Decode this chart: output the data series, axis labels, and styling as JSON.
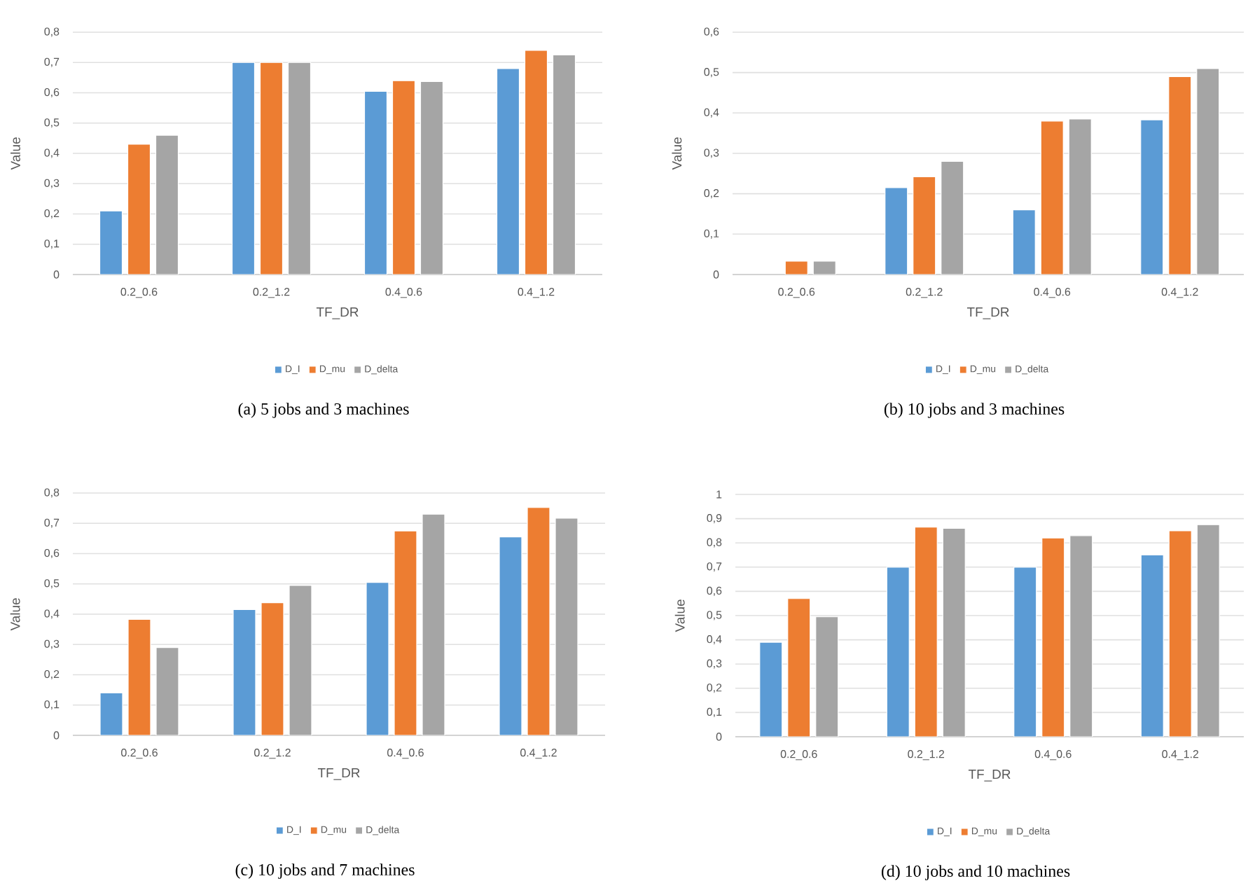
{
  "chart_data": [
    {
      "type": "bar",
      "categories": [
        "0.2_0.6",
        "0.2_1.2",
        "0.4_0.6",
        "0.4_1.2"
      ],
      "xlabel": "TF_DR",
      "ylabel": "Value",
      "ylim": [
        0,
        0.8
      ],
      "yticks": [
        0,
        {
          "value": 0.1,
          "label": "0,1"
        },
        {
          "value": 0.2,
          "label": "0,2"
        },
        {
          "value": 0.3,
          "label": "0,3"
        },
        {
          "value": 0.4,
          "label": "0,4"
        },
        {
          "value": 0.5,
          "label": "0,5"
        },
        {
          "value": 0.6,
          "label": "0,6"
        },
        {
          "value": 0.7,
          "label": "0,7"
        },
        {
          "value": 0.8,
          "label": "0,8"
        }
      ],
      "grid": "y",
      "legend": "bottom",
      "annotations": [
        "(a)  5 jobs and 3 machines"
      ],
      "series": [
        {
          "name": "D_I",
          "color": "#5b9bd5",
          "values": [
            0.21,
            0.7,
            0.605,
            0.68
          ]
        },
        {
          "name": "D_mu",
          "color": "#ed7d31",
          "values": [
            0.43,
            0.7,
            0.64,
            0.74
          ]
        },
        {
          "name": "D_delta",
          "color": "#a5a5a5",
          "values": [
            0.46,
            0.7,
            0.637,
            0.725
          ]
        }
      ]
    },
    {
      "type": "bar",
      "categories": [
        "0.2_0.6",
        "0.2_1.2",
        "0.4_0.6",
        "0.4_1.2"
      ],
      "xlabel": "TF_DR",
      "ylabel": "Value",
      "ylim": [
        0,
        0.6
      ],
      "yticks": [
        0,
        {
          "value": 0.1,
          "label": "0,1"
        },
        {
          "value": 0.2,
          "label": "0,2"
        },
        {
          "value": 0.3,
          "label": "0,3"
        },
        {
          "value": 0.4,
          "label": "0,4"
        },
        {
          "value": 0.5,
          "label": "0,5"
        },
        {
          "value": 0.6,
          "label": "0,6"
        }
      ],
      "grid": "y",
      "legend": "bottom",
      "annotations": [
        "(b)  10 jobs and 3 machines"
      ],
      "series": [
        {
          "name": "D_I",
          "color": "#5b9bd5",
          "values": [
            null,
            0.215,
            0.16,
            0.383
          ]
        },
        {
          "name": "D_mu",
          "color": "#ed7d31",
          "values": [
            0.033,
            0.242,
            0.38,
            0.49
          ]
        },
        {
          "name": "D_delta",
          "color": "#a5a5a5",
          "values": [
            0.033,
            0.28,
            0.385,
            0.51
          ]
        }
      ]
    },
    {
      "type": "bar",
      "categories": [
        "0.2_0.6",
        "0.2_1.2",
        "0.4_0.6",
        "0.4_1.2"
      ],
      "xlabel": "TF_DR",
      "ylabel": "Value",
      "ylim": [
        0,
        0.8
      ],
      "yticks": [
        0,
        {
          "value": 0.1,
          "label": "0,1"
        },
        {
          "value": 0.2,
          "label": "0,2"
        },
        {
          "value": 0.3,
          "label": "0,3"
        },
        {
          "value": 0.4,
          "label": "0,4"
        },
        {
          "value": 0.5,
          "label": "0,5"
        },
        {
          "value": 0.6,
          "label": "0,6"
        },
        {
          "value": 0.7,
          "label": "0,7"
        },
        {
          "value": 0.8,
          "label": "0,8"
        }
      ],
      "grid": "y",
      "legend": "bottom",
      "annotations": [
        "(c)  10 jobs and 7 machines"
      ],
      "series": [
        {
          "name": "D_I",
          "color": "#5b9bd5",
          "values": [
            0.14,
            0.415,
            0.505,
            0.655
          ]
        },
        {
          "name": "D_mu",
          "color": "#ed7d31",
          "values": [
            0.383,
            0.438,
            0.675,
            0.752
          ]
        },
        {
          "name": "D_delta",
          "color": "#a5a5a5",
          "values": [
            0.29,
            0.495,
            0.73,
            0.717
          ]
        }
      ]
    },
    {
      "type": "bar",
      "categories": [
        "0.2_0.6",
        "0.2_1.2",
        "0.4_0.6",
        "0.4_1.2"
      ],
      "xlabel": "TF_DR",
      "ylabel": "Value",
      "ylim": [
        0,
        1
      ],
      "yticks": [
        0,
        {
          "value": 0.1,
          "label": "0,1"
        },
        {
          "value": 0.2,
          "label": "0,2"
        },
        {
          "value": 0.3,
          "label": "0,3"
        },
        {
          "value": 0.4,
          "label": "0,4"
        },
        {
          "value": 0.5,
          "label": "0,5"
        },
        {
          "value": 0.6,
          "label": "0,6"
        },
        {
          "value": 0.7,
          "label": "0,7"
        },
        {
          "value": 0.8,
          "label": "0,8"
        },
        {
          "value": 0.9,
          "label": "0,9"
        },
        1
      ],
      "grid": "y",
      "legend": "bottom",
      "annotations": [
        "(d)  10 jobs and 10 machines"
      ],
      "series": [
        {
          "name": "D_I",
          "color": "#5b9bd5",
          "values": [
            0.39,
            0.7,
            0.7,
            0.75
          ]
        },
        {
          "name": "D_mu",
          "color": "#ed7d31",
          "values": [
            0.57,
            0.865,
            0.82,
            0.85
          ]
        },
        {
          "name": "D_delta",
          "color": "#a5a5a5",
          "values": [
            0.495,
            0.86,
            0.83,
            0.875
          ]
        }
      ]
    }
  ]
}
